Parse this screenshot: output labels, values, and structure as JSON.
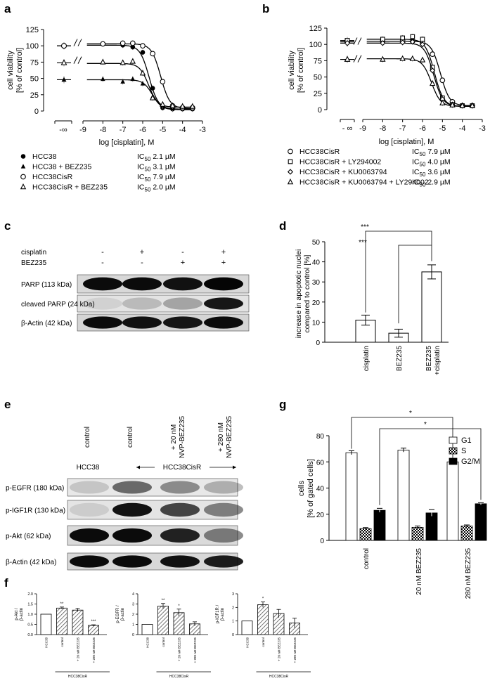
{
  "panels": {
    "a": {
      "letter": "a",
      "ylabel_1": "cell viability",
      "ylabel_2": "[% of control]",
      "xlabel": "log [cisplatin], M",
      "yticks": [
        "0",
        "25",
        "50",
        "75",
        "100",
        "125"
      ],
      "xticks": [
        "-9",
        "-8",
        "-7",
        "-6",
        "-5",
        "-4",
        "-3"
      ],
      "xinf": "-∞",
      "legend": [
        {
          "marker": "filled-circle",
          "name": "HCC38",
          "ic": "IC",
          "sub": "50",
          "val": "2.1 µM"
        },
        {
          "marker": "filled-triangle",
          "name": "HCC38 + BEZ235",
          "ic": "IC",
          "sub": "50",
          "val": "3.1 µM"
        },
        {
          "marker": "open-circle",
          "name": "HCC38CisR",
          "ic": "IC",
          "sub": "50",
          "val": "7.9 µM"
        },
        {
          "marker": "open-triangle",
          "name": "HCC38CisR + BEZ235",
          "ic": "IC",
          "sub": "50",
          "val": "2.0 µM"
        }
      ]
    },
    "b": {
      "letter": "b",
      "ylabel_1": "cell viability",
      "ylabel_2": "[% of control]",
      "xlabel": "log [cisplatin], M",
      "yticks": [
        "0",
        "25",
        "50",
        "75",
        "100",
        "125"
      ],
      "xticks": [
        "-9",
        "-8",
        "-7",
        "-6",
        "-5",
        "-4",
        "-3"
      ],
      "xinf": "- ∞",
      "legend": [
        {
          "marker": "open-circle",
          "name": "HCC38CisR",
          "ic": "IC",
          "sub": "50",
          "val": "7.9 µM"
        },
        {
          "marker": "open-square",
          "name": "HCC38CisR + LY294002",
          "ic": "IC",
          "sub": "50",
          "val": "4.0 µM"
        },
        {
          "marker": "open-diamond",
          "name": "HCC38CisR + KU0063794",
          "ic": "IC",
          "sub": "50",
          "val": "3.6 µM"
        },
        {
          "marker": "open-triangle",
          "name": "HCC38CisR + KU0063794 + LY294002",
          "ic": "IC",
          "sub": "50",
          "val": "2.9 µM"
        }
      ]
    },
    "c": {
      "letter": "c",
      "row_labels": [
        "cisplatin",
        "BEZ235"
      ],
      "conditions": [
        [
          "-",
          "-"
        ],
        [
          "+",
          "-"
        ],
        [
          "-",
          "+"
        ],
        [
          "+",
          "+"
        ]
      ],
      "blots": [
        "PARP (113 kDa)",
        "cleaved PARP (24 kDa)",
        "β-Actin (42 kDa)"
      ]
    },
    "d": {
      "letter": "d",
      "ylabel_1": "increase in apoptotic nuclei",
      "ylabel_2": "compared to control [%]",
      "yticks": [
        "0",
        "10",
        "20",
        "30",
        "40",
        "50"
      ],
      "categories": [
        "cisplatin",
        "BEZ235",
        "BEZ235",
        "+cisplatin"
      ],
      "sig": [
        "***",
        "***"
      ]
    },
    "e": {
      "letter": "e",
      "col_labels": [
        "control",
        "control",
        "+ 20 nM",
        "NVP-BEZ235",
        "+ 280 nM",
        "NVP-BEZ235"
      ],
      "group_left": "HCC38",
      "group_right": "HCC38CisR",
      "blots": [
        "p-EGFR (180 kDa)",
        "p-IGF1R (130 kDa)",
        "p-Akt (62 kDa)",
        "β-Actin (42 kDa)"
      ]
    },
    "g": {
      "letter": "g",
      "ylabel_1": "cells",
      "ylabel_2": "[% of gated cells]",
      "yticks": [
        "0",
        "20",
        "40",
        "60",
        "80"
      ],
      "categories": [
        "control",
        "20 nM BEZ235",
        "280 nM BEZ235"
      ],
      "legend": [
        "G1",
        "S",
        "G2/M"
      ],
      "sig": [
        "*",
        "*"
      ]
    },
    "f": {
      "letter": "f",
      "sub1": {
        "ylabel_1": "p-Akt /",
        "ylabel_2": "β-actin",
        "yticks": [
          "0.0",
          "0.5",
          "1.0",
          "1.5",
          "2.0"
        ],
        "sig": [
          "**",
          "",
          "***"
        ]
      },
      "sub2": {
        "ylabel_1": "p-EGFR /",
        "ylabel_2": "β-actin",
        "yticks": [
          "0",
          "1",
          "2",
          "3",
          "4"
        ],
        "sig": [
          "**",
          "*",
          ""
        ]
      },
      "sub3": {
        "ylabel_1": "p-IGF1R /",
        "ylabel_2": "β-actin",
        "yticks": [
          "0",
          "1",
          "2",
          "3"
        ],
        "sig": [
          "*",
          "",
          ""
        ]
      },
      "categories": [
        "HCC38",
        "control",
        "+ 20 nM BEZ235",
        "+ 280 nM BEZ235"
      ],
      "group": "HCC38CisR"
    }
  },
  "chart_data": [
    {
      "type": "line",
      "panel": "a",
      "xlabel": "log [cisplatin], M",
      "ylabel": "cell viability [% of control]",
      "xlim": [
        -9,
        -3
      ],
      "ylim": [
        0,
        125
      ],
      "series": [
        {
          "name": "HCC38",
          "marker": "filled-circle",
          "top": 101,
          "bottom": 3,
          "logIC50": -5.68,
          "x": [
            -8,
            -7,
            -6.5,
            -6,
            -5.5,
            -5,
            -4.5,
            -4,
            -3.5
          ],
          "y": [
            103,
            101,
            98,
            90,
            35,
            5,
            3,
            3,
            3
          ]
        },
        {
          "name": "HCC38 + BEZ235",
          "marker": "filled-triangle",
          "top": 48,
          "bottom": 2,
          "logIC50": -5.51,
          "x": [
            -8,
            -7,
            -6.5,
            -6,
            -5.5,
            -5,
            -4.5,
            -4,
            -3.5
          ],
          "y": [
            49,
            45,
            49,
            42,
            22,
            8,
            4,
            4,
            4
          ]
        },
        {
          "name": "HCC38CisR",
          "marker": "open-circle",
          "top": 103,
          "bottom": 4,
          "logIC50": -5.1,
          "x": [
            -8,
            -7,
            -6.5,
            -6,
            -5.5,
            -5,
            -4.5,
            -4,
            -3.5
          ],
          "y": [
            103,
            104,
            104,
            100,
            88,
            45,
            8,
            5,
            5
          ]
        },
        {
          "name": "HCC38CisR + BEZ235",
          "marker": "open-triangle",
          "top": 73,
          "bottom": 6,
          "logIC50": -5.7,
          "x": [
            -8,
            -7,
            -6.5,
            -6,
            -5.5,
            -5,
            -4.5,
            -4,
            -3.5
          ],
          "y": [
            75,
            74,
            76,
            58,
            20,
            10,
            8,
            7,
            7
          ]
        }
      ],
      "zero_dose": [
        {
          "name": "HCC38",
          "y": 100
        },
        {
          "name": "HCC38 + BEZ235",
          "y": 48
        },
        {
          "name": "HCC38CisR",
          "y": 100
        },
        {
          "name": "HCC38CisR + BEZ235",
          "y": 74
        }
      ]
    },
    {
      "type": "line",
      "panel": "b",
      "xlabel": "log [cisplatin], M",
      "ylabel": "cell viability [% of control]",
      "xlim": [
        -9,
        -3
      ],
      "ylim": [
        0,
        125
      ],
      "series": [
        {
          "name": "HCC38CisR",
          "marker": "open-circle",
          "top": 105,
          "bottom": 6,
          "logIC50": -5.1,
          "x": [
            -8,
            -7,
            -6.5,
            -6,
            -5.5,
            -5,
            -4.5,
            -4,
            -3.5
          ],
          "y": [
            105,
            106,
            105,
            102,
            85,
            45,
            12,
            6,
            6
          ]
        },
        {
          "name": "HCC38CisR + LY294002",
          "marker": "open-square",
          "top": 108,
          "bottom": 5,
          "logIC50": -5.4,
          "x": [
            -8,
            -7,
            -6.5,
            -6,
            -5.5,
            -5,
            -4.5,
            -4,
            -3.5
          ],
          "y": [
            108,
            110,
            112,
            108,
            65,
            18,
            8,
            6,
            6
          ]
        },
        {
          "name": "HCC38CisR + KU0063794",
          "marker": "open-diamond",
          "top": 102,
          "bottom": 5,
          "logIC50": -5.44,
          "x": [
            -8,
            -7,
            -6.5,
            -6,
            -5.5,
            -5,
            -4.5,
            -4,
            -3.5
          ],
          "y": [
            102,
            103,
            104,
            100,
            60,
            16,
            7,
            6,
            6
          ]
        },
        {
          "name": "HCC38CisR + KU0063794 + LY294002",
          "marker": "open-triangle",
          "top": 78,
          "bottom": 5,
          "logIC50": -5.55,
          "x": [
            -8,
            -7,
            -6.5,
            -6,
            -5.5,
            -5,
            -4.5,
            -4,
            -3.5
          ],
          "y": [
            77,
            78,
            78,
            76,
            40,
            10,
            7,
            6,
            6
          ]
        }
      ],
      "zero_dose": [
        {
          "name": "HCC38CisR",
          "y": 104
        },
        {
          "name": "HCC38CisR + LY294002",
          "y": 106
        },
        {
          "name": "HCC38CisR + KU0063794",
          "y": 102
        },
        {
          "name": "HCC38CisR + KU0063794 + LY294002",
          "y": 77
        }
      ]
    },
    {
      "type": "bar",
      "panel": "d",
      "ylabel": "increase in apoptotic nuclei compared to control [%]",
      "categories": [
        "cisplatin",
        "BEZ235",
        "BEZ235 +cisplatin"
      ],
      "values": [
        11,
        4.5,
        35
      ],
      "errors": [
        2.5,
        2,
        3.5
      ],
      "ylim": [
        0,
        50
      ]
    },
    {
      "type": "bar",
      "panel": "g",
      "ylabel": "cells [% of gated cells]",
      "categories": [
        "control",
        "20 nM BEZ235",
        "280 nM BEZ235"
      ],
      "series": [
        {
          "name": "G1",
          "values": [
            67,
            69,
            60
          ],
          "errors": [
            1.5,
            1.5,
            1.2
          ]
        },
        {
          "name": "S",
          "values": [
            9,
            10,
            11
          ],
          "errors": [
            0.8,
            1,
            0.8
          ]
        },
        {
          "name": "G2/M",
          "values": [
            23,
            21,
            28
          ],
          "errors": [
            1.5,
            2.5,
            0.8
          ]
        }
      ],
      "ylim": [
        0,
        80
      ]
    },
    {
      "type": "bar",
      "panel": "f-1",
      "ylabel": "p-Akt / β-actin",
      "categories": [
        "HCC38",
        "control",
        "+ 20 nM BEZ235",
        "+ 280 nM BEZ235"
      ],
      "values": [
        1.0,
        1.3,
        1.2,
        0.45
      ],
      "errors": [
        0,
        0.05,
        0.08,
        0.03
      ],
      "ylim": [
        0,
        2.0
      ]
    },
    {
      "type": "bar",
      "panel": "f-2",
      "ylabel": "p-EGFR / β-actin",
      "categories": [
        "HCC38",
        "control",
        "+ 20 nM BEZ235",
        "+ 280 nM BEZ235"
      ],
      "values": [
        1.0,
        2.8,
        2.15,
        1.05
      ],
      "errors": [
        0,
        0.25,
        0.35,
        0.2
      ],
      "ylim": [
        0,
        4
      ]
    },
    {
      "type": "bar",
      "panel": "f-3",
      "ylabel": "p-IGF1R / β-actin",
      "categories": [
        "HCC38",
        "control",
        "+ 20 nM BEZ235",
        "+ 280 nM BEZ235"
      ],
      "values": [
        1.0,
        2.2,
        1.55,
        0.85
      ],
      "errors": [
        0,
        0.2,
        0.3,
        0.35
      ],
      "ylim": [
        0,
        3
      ]
    }
  ]
}
